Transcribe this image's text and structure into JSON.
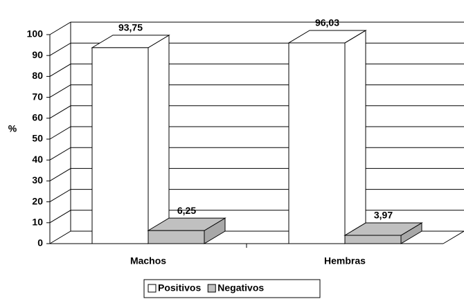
{
  "chart_data": {
    "type": "bar3d",
    "y_label": "%",
    "categories": [
      "Machos",
      "Hembras"
    ],
    "series": [
      {
        "name": "Positivos",
        "color": "#ffffff",
        "values": [
          93.75,
          96.03
        ],
        "value_labels": [
          "93,75",
          "96,03"
        ]
      },
      {
        "name": "Negativos",
        "color": "#c0c0c0",
        "values": [
          6.25,
          3.97
        ],
        "value_labels": [
          "6,25",
          "3,97"
        ]
      }
    ],
    "ylim": [
      0,
      100
    ],
    "yticks": [
      0,
      10,
      20,
      30,
      40,
      50,
      60,
      70,
      80,
      90,
      100
    ],
    "grid": true,
    "legend": "bottom"
  }
}
